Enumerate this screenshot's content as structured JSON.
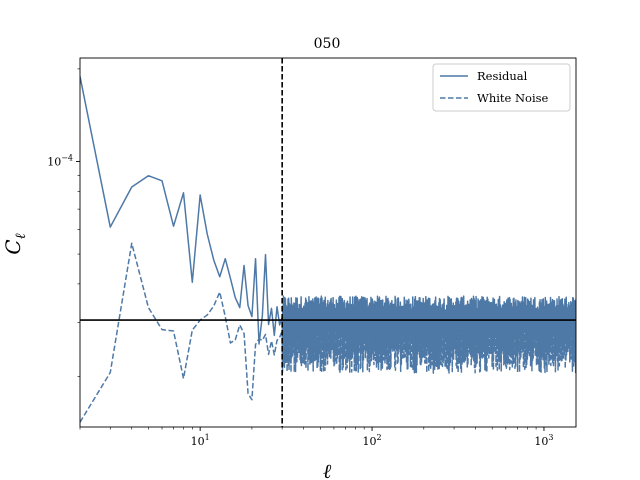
{
  "chart_data": {
    "type": "line",
    "title": "050",
    "xlabel": "ℓ",
    "ylabel_main": "C",
    "ylabel_sub": "ℓ",
    "xscale": "log",
    "yscale": "log",
    "xlim": [
      2,
      1536
    ],
    "ylim": [
      1.37e-05,
      0.000217
    ],
    "x_ticks": [
      {
        "value": 10,
        "base": "10",
        "exp": "1"
      },
      {
        "value": 100,
        "base": "10",
        "exp": "2"
      },
      {
        "value": 1000,
        "base": "10",
        "exp": "3"
      }
    ],
    "y_ticks": [
      {
        "value": 0.0001,
        "base": "10",
        "exp": "−4"
      }
    ],
    "reference_hline": 3.05e-05,
    "reference_vline": 30,
    "legend_position": "top-right",
    "series": [
      {
        "name": "Residual",
        "style": "solid",
        "color": "#4e79a7",
        "x": [
          2,
          3,
          4,
          5,
          6,
          7,
          8,
          9,
          10,
          11,
          12,
          13,
          14,
          15,
          16,
          17,
          18,
          19,
          20,
          21,
          22,
          23,
          24,
          25,
          26,
          27,
          28,
          29,
          30
        ],
        "y": [
          0.000189,
          6.12e-05,
          8.26e-05,
          8.99e-05,
          8.65e-05,
          6.16e-05,
          7.91e-05,
          4.05e-05,
          7.78e-05,
          5.8e-05,
          4.78e-05,
          4.22e-05,
          4.83e-05,
          4.17e-05,
          3.61e-05,
          3.35e-05,
          4.59e-05,
          3.4e-05,
          3.13e-05,
          4.83e-05,
          2.55e-05,
          3.15e-05,
          4.98e-05,
          2.95e-05,
          3.33e-05,
          2.72e-05,
          3.37e-05,
          2.94e-05,
          3.12e-05
        ],
        "high_ell_band": {
          "x_start": 30,
          "x_end": 1536,
          "low": 2.55e-05,
          "high": 3.65e-05,
          "center": 3.08e-05
        }
      },
      {
        "name": "White Noise",
        "style": "dashed",
        "color": "#4e79a7",
        "x": [
          2,
          3,
          4,
          5,
          6,
          7,
          8,
          9,
          10,
          11,
          12,
          13,
          14,
          15,
          16,
          17,
          18,
          19,
          20,
          21,
          22,
          23,
          24,
          25,
          26,
          27,
          28,
          29,
          30
        ],
        "y": [
          1.42e-05,
          2.06e-05,
          5.42e-05,
          3.35e-05,
          2.84e-05,
          2.81e-05,
          1.97e-05,
          2.83e-05,
          3.05e-05,
          3.17e-05,
          3.39e-05,
          3.76e-05,
          3.13e-05,
          2.57e-05,
          2.63e-05,
          2.94e-05,
          2.76e-05,
          1.76e-05,
          1.68e-05,
          2.54e-05,
          2.65e-05,
          2.62e-05,
          2.74e-05,
          2.36e-05,
          2.61e-05,
          2.35e-05,
          2.62e-05,
          2.68e-05,
          2.81e-05
        ],
        "high_ell_band": {
          "x_start": 30,
          "x_end": 1536,
          "low": 2.05e-05,
          "high": 3.05e-05,
          "center": 2.72e-05
        }
      }
    ]
  }
}
